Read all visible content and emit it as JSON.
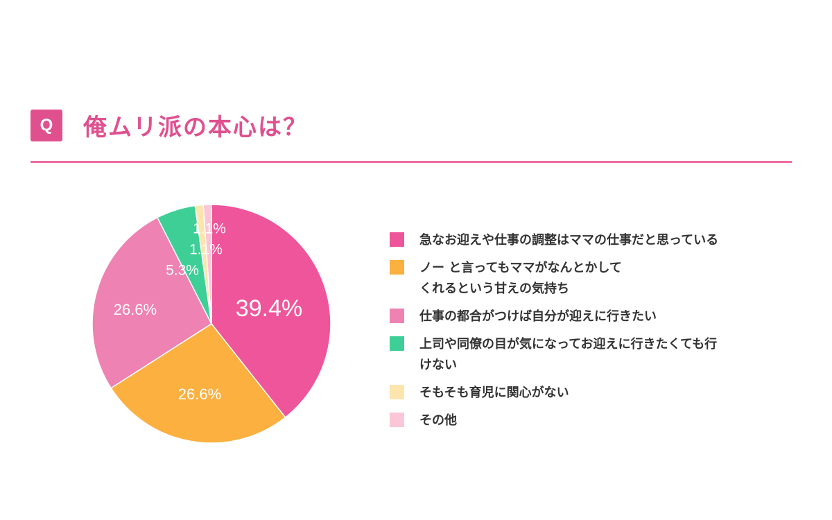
{
  "header": {
    "badge": "Q",
    "title": "俺ムリ派の本心は？"
  },
  "colors": {
    "accent": "#e0508f",
    "rule": "#ef6aa4"
  },
  "chart_data": {
    "type": "pie",
    "title": "俺ムリ派の本心は？",
    "start": "12 o'clock, clockwise",
    "legend_position": "right",
    "slices": [
      {
        "label": "急なお迎えや仕事の調整はママの仕事だと思っている",
        "value": 39.4,
        "value_label": "39.4%",
        "color": "#ef559a"
      },
      {
        "label": "ノー と言ってもママがなんとかして\nくれるという甘えの気持ち",
        "value": 26.6,
        "value_label": "26.6%",
        "color": "#fbb040"
      },
      {
        "label": "仕事の都合がつけば自分が迎えに行きたい",
        "value": 26.6,
        "value_label": "26.6%",
        "color": "#ee82b2"
      },
      {
        "label": "上司や同僚の目が気になってお迎えに行きたくても行\nけない",
        "value": 5.3,
        "value_label": "5.3%",
        "color": "#3ecf96"
      },
      {
        "label": "そもそも育児に関心がない",
        "value": 1.1,
        "value_label": "1.1%",
        "color": "#fde5ad"
      },
      {
        "label": "その他",
        "value": 1.1,
        "value_label": "1.1%",
        "color": "#fbc6d6"
      }
    ]
  }
}
